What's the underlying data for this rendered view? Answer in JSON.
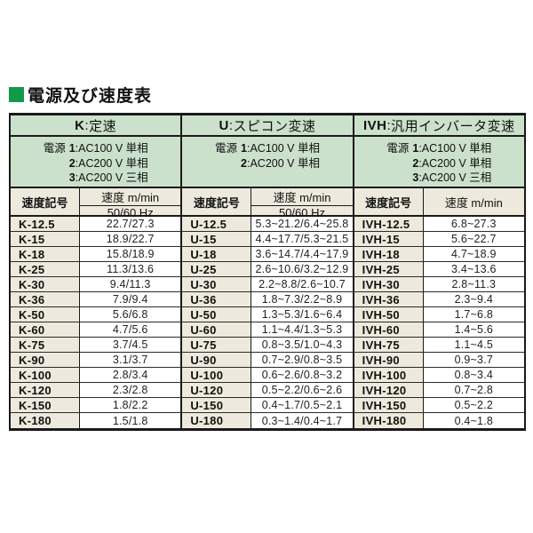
{
  "page_title": "電源及び速度表",
  "colors": {
    "header_green": "#cbe1cc",
    "key_beige": "#edeadd",
    "title_bullet_green": "#12994a",
    "border_black": "#1a1a1a"
  },
  "groups": [
    {
      "title_code": "K",
      "title_sep": ":",
      "title_name": "定速",
      "power_label": "電源",
      "power_lines": [
        "1:AC100 V 単相",
        "2:AC200 V 単相",
        "3:AC200 V 三相"
      ],
      "headers": {
        "symbol": "速度記号",
        "speed": "速度 m/min",
        "hz": "50/60 Hz"
      },
      "rows": [
        {
          "code": "K-12.5",
          "value": "22.7/27.3"
        },
        {
          "code": "K-15",
          "value": "18.9/22.7"
        },
        {
          "code": "K-18",
          "value": "15.8/18.9"
        },
        {
          "code": "K-25",
          "value": "11.3/13.6"
        },
        {
          "code": "K-30",
          "value": "9.4/11.3"
        },
        {
          "code": "K-36",
          "value": "7.9/9.4"
        },
        {
          "code": "K-50",
          "value": "5.6/6.8"
        },
        {
          "code": "K-60",
          "value": "4.7/5.6"
        },
        {
          "code": "K-75",
          "value": "3.7/4.5"
        },
        {
          "code": "K-90",
          "value": "3.1/3.7"
        },
        {
          "code": "K-100",
          "value": "2.8/3.4"
        },
        {
          "code": "K-120",
          "value": "2.3/2.8"
        },
        {
          "code": "K-150",
          "value": "1.8/2.2"
        },
        {
          "code": "K-180",
          "value": "1.5/1.8"
        }
      ]
    },
    {
      "title_code": "U",
      "title_sep": ":",
      "title_name": "スピコン変速",
      "power_label": "電源",
      "power_lines": [
        "1:AC100 V 単相",
        "2:AC200 V 単相"
      ],
      "headers": {
        "symbol": "速度記号",
        "speed": "速度 m/min",
        "hz": "50/60 Hz"
      },
      "rows": [
        {
          "code": "U-12.5",
          "value": "5.3~21.2/6.4~25.8"
        },
        {
          "code": "U-15",
          "value": "4.4~17.7/5.3~21.5"
        },
        {
          "code": "U-18",
          "value": "3.6~14.7/4.4~17.9"
        },
        {
          "code": "U-25",
          "value": "2.6~10.6/3.2~12.9"
        },
        {
          "code": "U-30",
          "value": "2.2~8.8/2.6~10.7"
        },
        {
          "code": "U-36",
          "value": "1.8~7.3/2.2~8.9"
        },
        {
          "code": "U-50",
          "value": "1.3~5.3/1.6~6.4"
        },
        {
          "code": "U-60",
          "value": "1.1~4.4/1.3~5.3"
        },
        {
          "code": "U-75",
          "value": "0.8~3.5/1.0~4.3"
        },
        {
          "code": "U-90",
          "value": "0.7~2.9/0.8~3.5"
        },
        {
          "code": "U-100",
          "value": "0.6~2.6/0.8~3.2"
        },
        {
          "code": "U-120",
          "value": "0.5~2.2/0.6~2.6"
        },
        {
          "code": "U-150",
          "value": "0.4~1.7/0.5~2.1"
        },
        {
          "code": "U-180",
          "value": "0.3~1.4/0.4~1.7"
        }
      ]
    },
    {
      "title_code": "IVH",
      "title_sep": ":",
      "title_name": "汎用インバータ変速",
      "power_label": "電源",
      "power_lines": [
        "1:AC100 V 単相",
        "2:AC200 V 単相",
        "3:AC200 V 三相"
      ],
      "headers": {
        "symbol": "速度記号",
        "speed": "速度 m/min"
      },
      "rows": [
        {
          "code": "IVH-12.5",
          "value": "6.8~27.3"
        },
        {
          "code": "IVH-15",
          "value": "5.6~22.7"
        },
        {
          "code": "IVH-18",
          "value": "4.7~18.9"
        },
        {
          "code": "IVH-25",
          "value": "3.4~13.6"
        },
        {
          "code": "IVH-30",
          "value": "2.8~11.3"
        },
        {
          "code": "IVH-36",
          "value": "2.3~9.4"
        },
        {
          "code": "IVH-50",
          "value": "1.7~6.8"
        },
        {
          "code": "IVH-60",
          "value": "1.4~5.6"
        },
        {
          "code": "IVH-75",
          "value": "1.1~4.5"
        },
        {
          "code": "IVH-90",
          "value": "0.9~3.7"
        },
        {
          "code": "IVH-100",
          "value": "0.8~3.4"
        },
        {
          "code": "IVH-120",
          "value": "0.7~2.8"
        },
        {
          "code": "IVH-150",
          "value": "0.5~2.2"
        },
        {
          "code": "IVH-180",
          "value": "0.4~1.8"
        }
      ]
    }
  ]
}
